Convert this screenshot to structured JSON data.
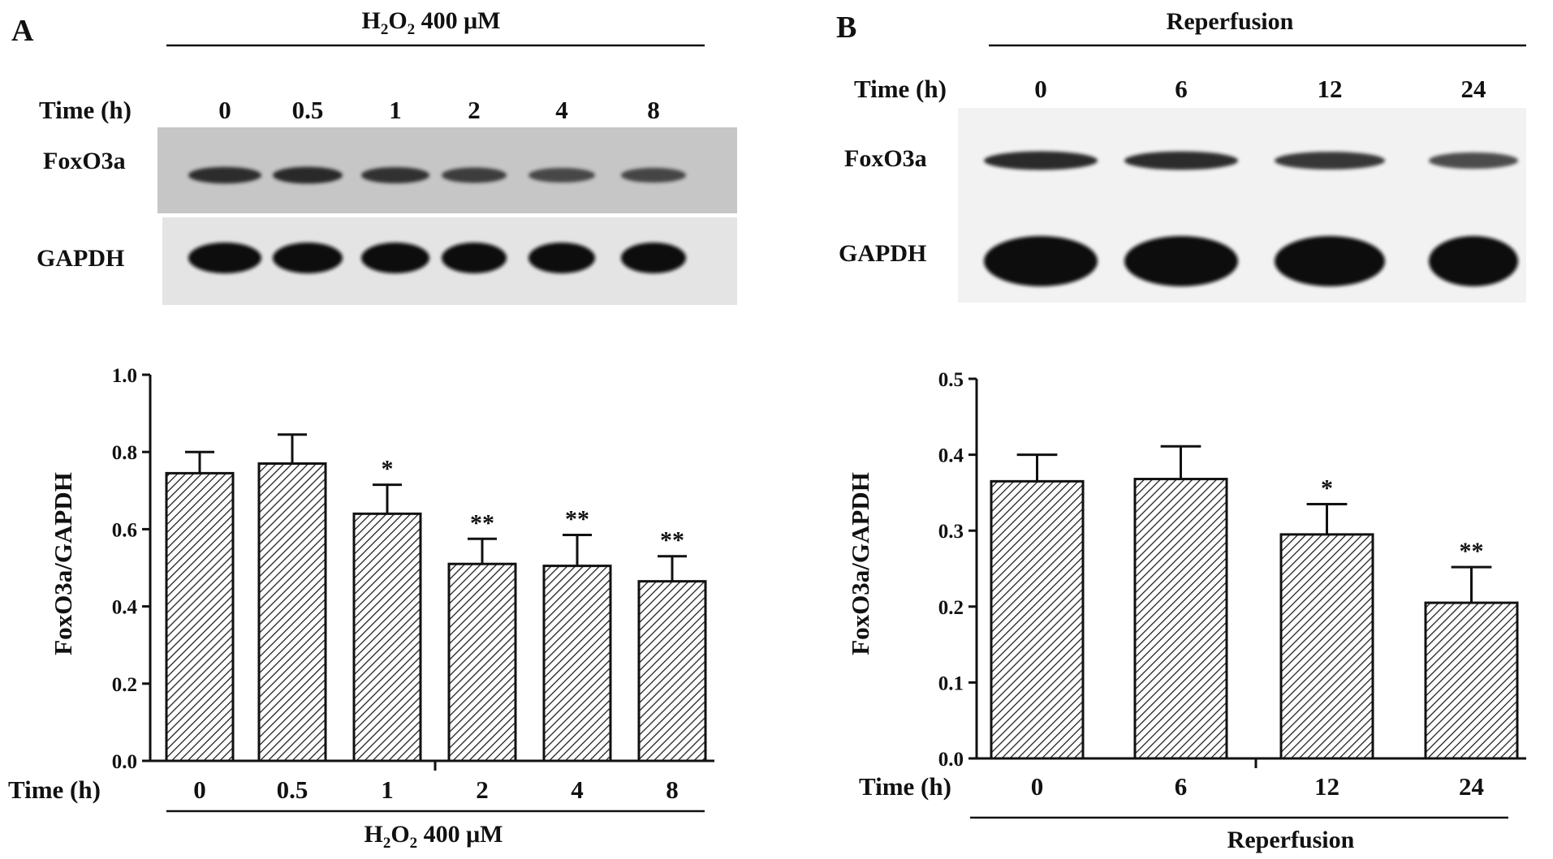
{
  "panels": [
    {
      "letter": "A",
      "blot": {
        "treatment_pre": "H",
        "treatment_sub1": "2",
        "treatment_mid": "O",
        "treatment_sub2": "2",
        "treatment_post": " 400 μM",
        "time_label": "Time (h)",
        "times": [
          "0",
          "0.5",
          "1",
          "2",
          "4",
          "8"
        ],
        "bands": [
          {
            "name": "FoxO3a",
            "intensity": [
              0.85,
              0.88,
              0.8,
              0.7,
              0.6,
              0.62
            ]
          },
          {
            "name": "GAPDH",
            "intensity": [
              1,
              1,
              1,
              1,
              1,
              1
            ]
          }
        ]
      },
      "xaxis_label": "Time (h)",
      "bottom_pre": "H",
      "bottom_sub1": "2",
      "bottom_mid": "O",
      "bottom_sub2": "2",
      "bottom_post": " 400 μM"
    },
    {
      "letter": "B",
      "blot": {
        "treatment": "Reperfusion",
        "time_label": "Time (h)",
        "times": [
          "0",
          "6",
          "12",
          "24"
        ],
        "bands": [
          {
            "name": "FoxO3a",
            "intensity": [
              0.9,
              0.88,
              0.8,
              0.65
            ]
          },
          {
            "name": "GAPDH",
            "intensity": [
              1,
              1,
              1,
              1
            ]
          }
        ]
      },
      "xaxis_label": "Time (h)",
      "bottom_label": "Reperfusion"
    }
  ],
  "chart_data": [
    {
      "type": "bar",
      "categories": [
        "0",
        "0.5",
        "1",
        "2",
        "4",
        "8"
      ],
      "values": [
        0.745,
        0.77,
        0.64,
        0.51,
        0.505,
        0.465
      ],
      "errors": [
        0.055,
        0.075,
        0.075,
        0.065,
        0.08,
        0.065
      ],
      "significance": [
        "",
        "",
        "*",
        "**",
        "**",
        "**"
      ],
      "ylabel": "FoxO3a/GAPDH",
      "ylim": [
        0,
        1.0
      ],
      "yticks": [
        "0.0",
        "0.2",
        "0.4",
        "0.6",
        "0.8",
        "1.0"
      ],
      "ytick_values": [
        0,
        0.2,
        0.4,
        0.6,
        0.8,
        1.0
      ]
    },
    {
      "type": "bar",
      "categories": [
        "0",
        "6",
        "12",
        "24"
      ],
      "values": [
        0.365,
        0.368,
        0.295,
        0.205
      ],
      "errors": [
        0.035,
        0.043,
        0.04,
        0.047
      ],
      "significance": [
        "",
        "",
        "*",
        "**"
      ],
      "ylabel": "FoxO3a/GAPDH",
      "ylim": [
        0,
        0.5
      ],
      "yticks": [
        "0.0",
        "0.1",
        "0.2",
        "0.3",
        "0.4",
        "0.5"
      ],
      "ytick_values": [
        0,
        0.1,
        0.2,
        0.3,
        0.4,
        0.5
      ]
    }
  ]
}
